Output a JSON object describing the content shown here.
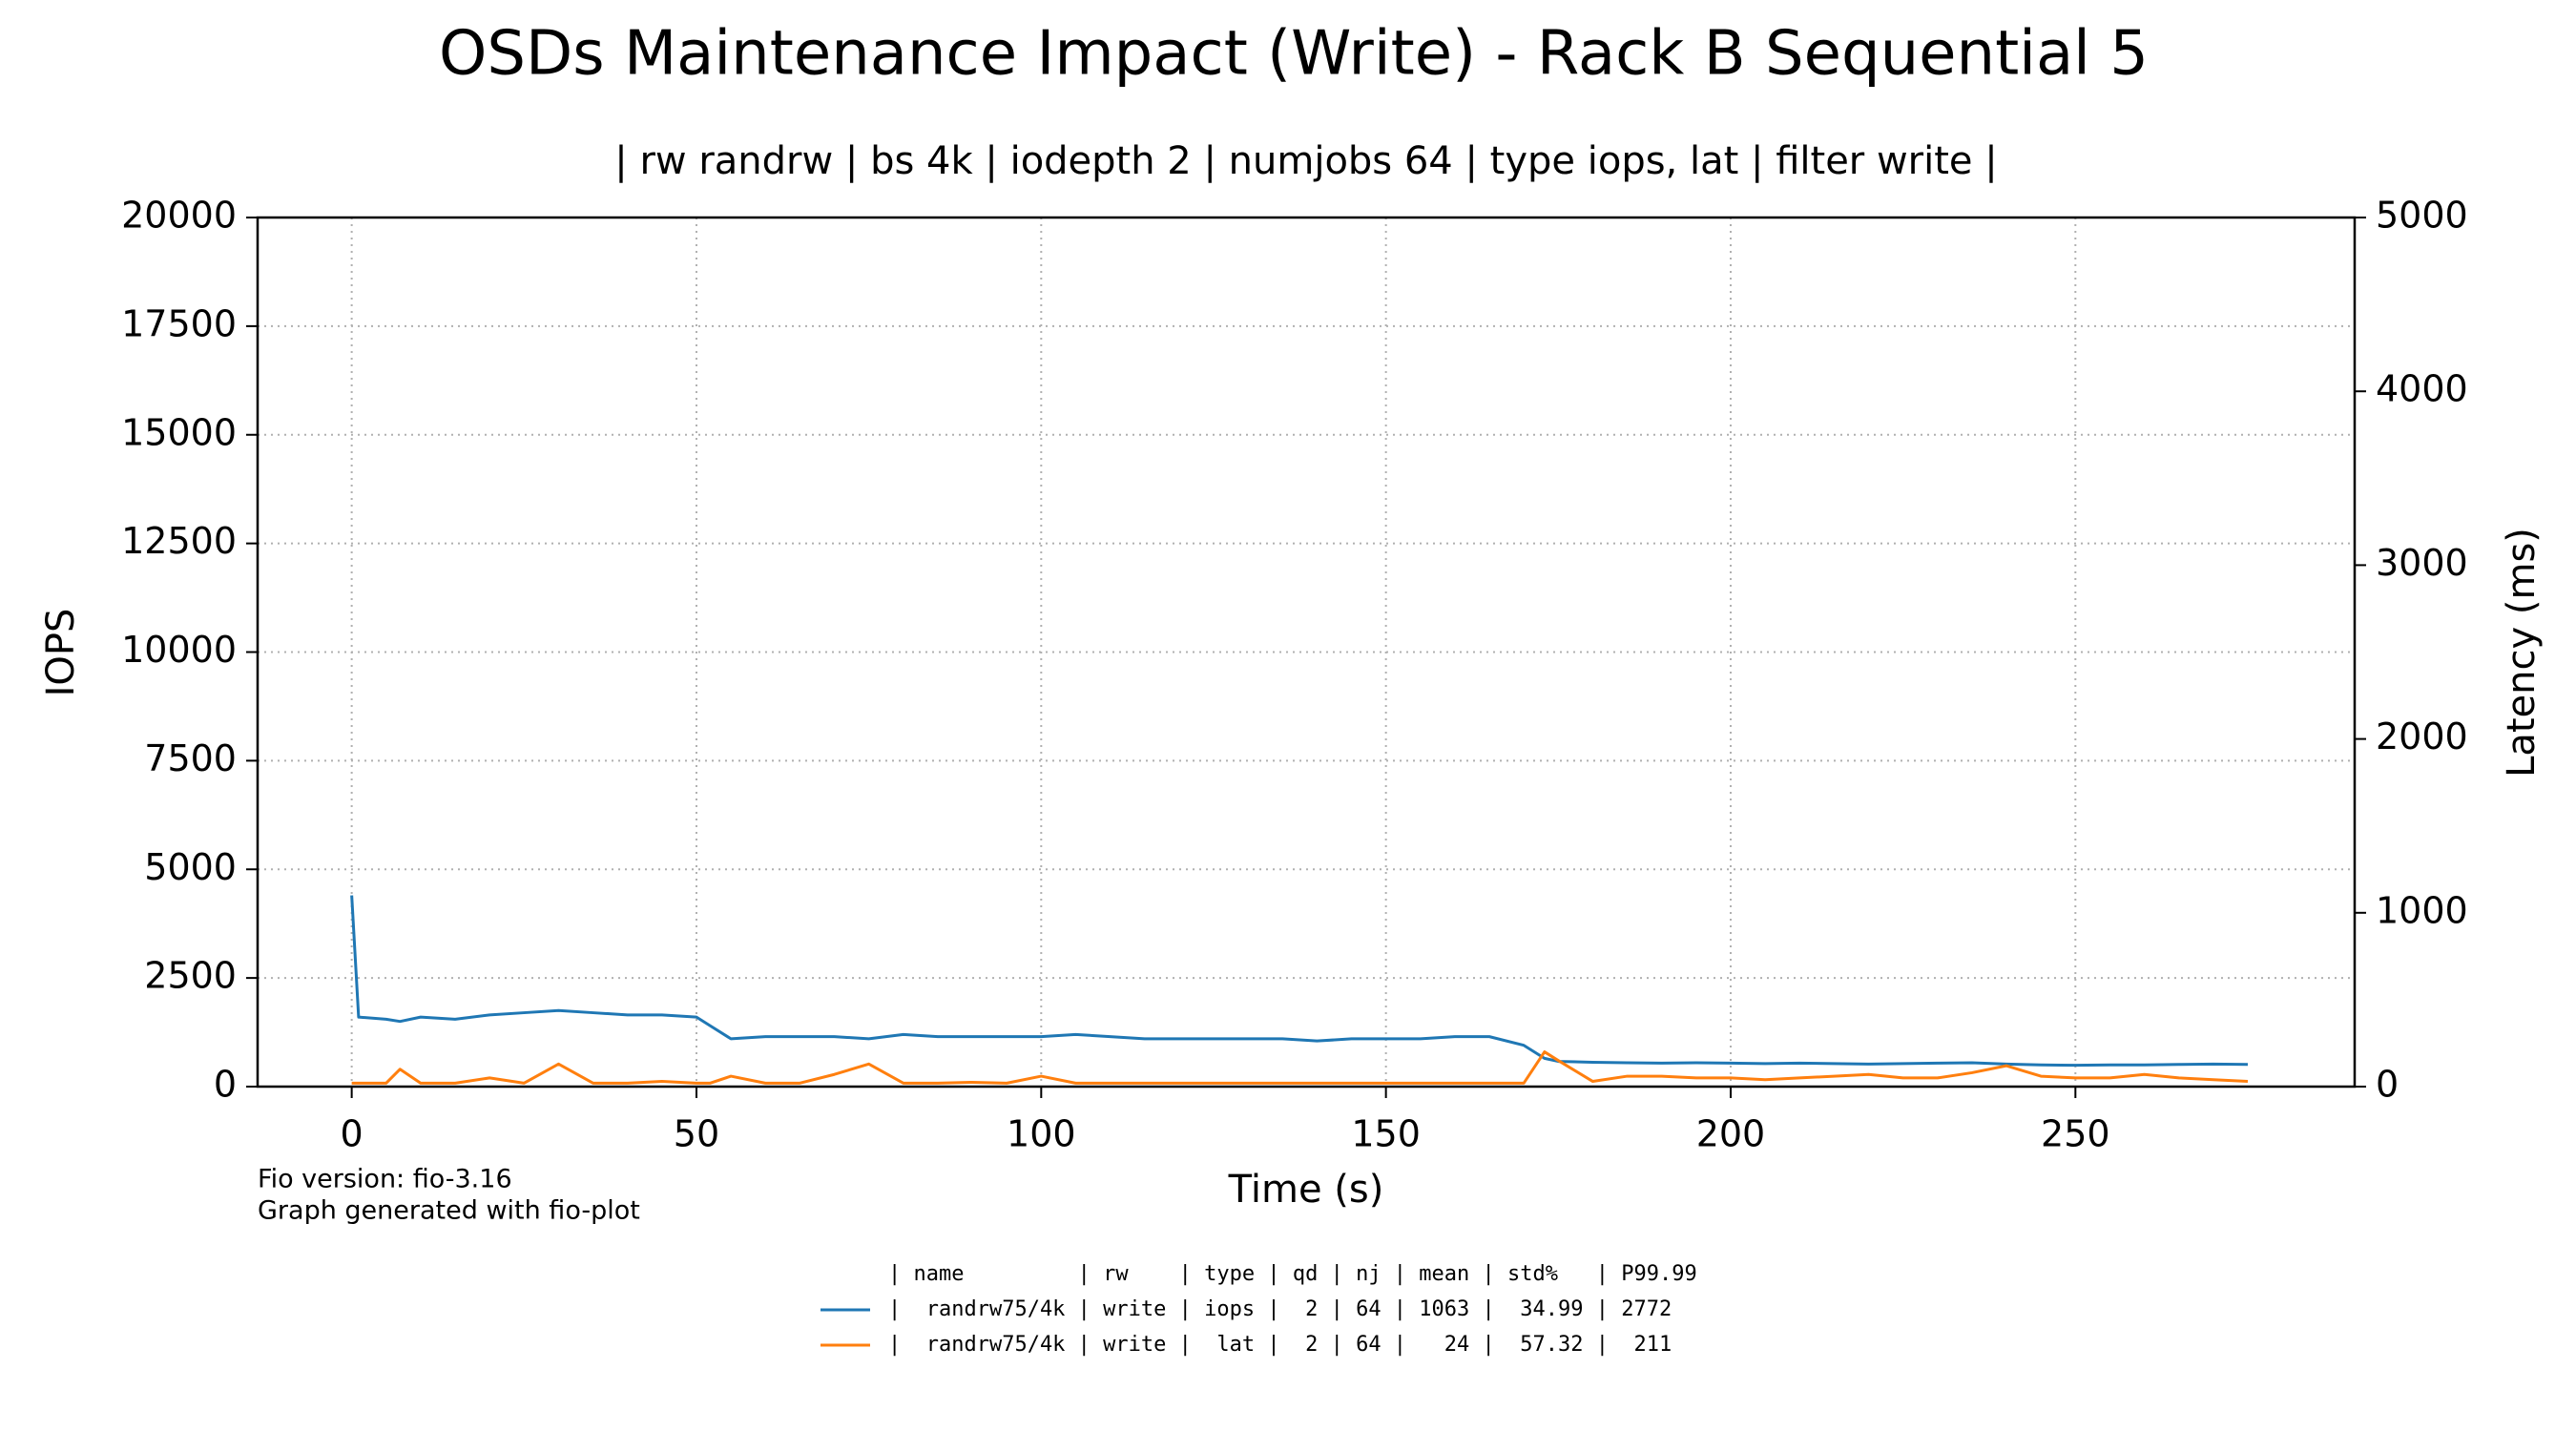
{
  "chart_data": {
    "type": "line",
    "title": "OSDs Maintenance Impact (Write) - Rack B Sequential 5",
    "subtitle": "| rw randrw | bs 4k | iodepth 2 | numjobs 64 | type iops, lat | filter write |",
    "x_label": "Time (s)",
    "y_label": "IOPS",
    "y2_label": "Latency (ms)",
    "footnotes": [
      "Fio version: fio-3.16",
      "Graph generated with fio-plot"
    ],
    "legend_header": "| name         | rw    | type | qd | nj | mean | std%   | P99.99",
    "x": [
      0,
      1,
      5,
      7,
      10,
      15,
      20,
      25,
      30,
      35,
      40,
      45,
      50,
      52,
      55,
      60,
      65,
      70,
      75,
      80,
      85,
      90,
      95,
      100,
      105,
      110,
      115,
      120,
      125,
      130,
      135,
      140,
      145,
      150,
      155,
      160,
      165,
      170,
      173,
      175,
      180,
      185,
      190,
      195,
      200,
      205,
      210,
      215,
      220,
      225,
      230,
      235,
      240,
      245,
      250,
      255,
      260,
      265,
      270,
      275
    ],
    "series": [
      {
        "name": "|  randrw75/4k | write | iops |  2 | 64 | 1063 |  34.99 | 2772",
        "color": "#1f77b4",
        "axis": "y",
        "values": [
          4400,
          1600,
          1550,
          1500,
          1600,
          1550,
          1650,
          1700,
          1750,
          1700,
          1650,
          1650,
          1600,
          1400,
          1100,
          1150,
          1150,
          1150,
          1100,
          1200,
          1150,
          1150,
          1150,
          1150,
          1200,
          1150,
          1100,
          1100,
          1100,
          1100,
          1100,
          1050,
          1100,
          1100,
          1100,
          1150,
          1150,
          950,
          650,
          580,
          560,
          550,
          540,
          550,
          540,
          530,
          540,
          530,
          520,
          530,
          540,
          550,
          520,
          500,
          490,
          500,
          500,
          510,
          520,
          510
        ]
      },
      {
        "name": "|  randrw75/4k | write |  lat |  2 | 64 |   24 |  57.32 |  211",
        "color": "#ff7f0e",
        "axis": "y2",
        "values": [
          20,
          20,
          20,
          100,
          20,
          20,
          50,
          20,
          130,
          20,
          20,
          30,
          20,
          20,
          60,
          20,
          20,
          70,
          130,
          20,
          20,
          25,
          20,
          60,
          20,
          20,
          20,
          20,
          20,
          20,
          20,
          20,
          20,
          20,
          20,
          20,
          20,
          20,
          200,
          150,
          30,
          60,
          60,
          50,
          50,
          40,
          50,
          60,
          70,
          50,
          50,
          80,
          120,
          60,
          50,
          50,
          70,
          50,
          40,
          30
        ]
      }
    ],
    "xlim": [
      -13.65,
      290.5
    ],
    "xticks": [
      0,
      50,
      100,
      150,
      200,
      250
    ],
    "ylim": [
      0,
      20000
    ],
    "yticks": [
      0,
      2500,
      5000,
      7500,
      10000,
      12500,
      15000,
      17500,
      20000
    ],
    "y2lim": [
      0,
      5000
    ],
    "y2ticks": [
      0,
      1000,
      2000,
      3000,
      4000,
      5000
    ],
    "grid": true
  }
}
